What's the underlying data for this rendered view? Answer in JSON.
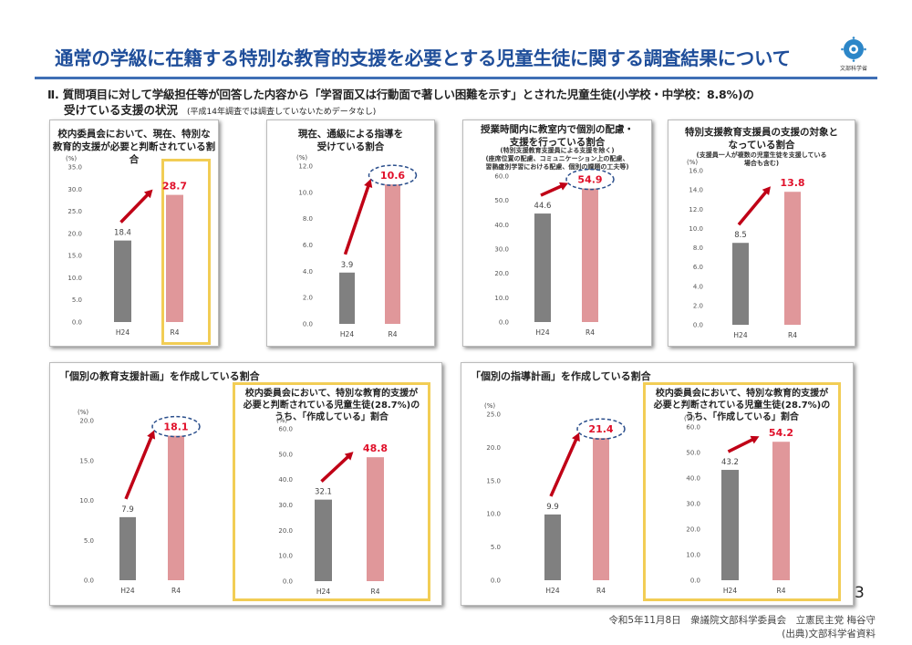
{
  "header": {
    "title": "通常の学級に在籍する特別な教育的支援を必要とする児童生徒に関する調査結果について",
    "logo_text": "文部科学省",
    "question_line1": "Ⅱ. 質問項目に対して学級担任等が回答した内容から「学習面又は行動面で著しい困難を示す」とされた児童生徒(小学校・中学校：8.8%)の",
    "question_line2": "受けている支援の状況",
    "question_note": "(平成14年調査では調査していないためデータなし)"
  },
  "colors": {
    "h24": "#808080",
    "r4": "#e0979a",
    "label_r4": "#e0102a",
    "arrow": "#c00016",
    "highlight": "#f2cd55",
    "ellipse": "#2b4f8c"
  },
  "panels": {
    "p1": {
      "title": "校内委員会において、現在、特別な\n教育的支援が必要と判断されている割合"
    },
    "p2": {
      "title": "現在、通級による指導を\n受けている割合"
    },
    "p3": {
      "title": "授業時間内に教室内で個別の配慮・\n支援を行っている割合",
      "subtitle": "(特別支援教育支援員による支援を除く)\n(座席位置の配慮、コミュニケーション上の配慮、\n習熟度別学習における配慮、個別の課題の工夫等)"
    },
    "p4": {
      "title": "特別支援教育支援員の支援の対象と\nなっている割合",
      "subtitle": "(支援員一人が複数の児童生徒を支援している\n場合も含む)"
    },
    "p5": {
      "title": "「個別の教育支援計画」を作成している割合",
      "inner_title": "校内委員会において、特別な教育的支援が\n必要と判断されている児童生徒(28.7%)の\nうち、「作成している」割合"
    },
    "p6": {
      "title": "「個別の指導計画」を作成している割合",
      "inner_title": "校内委員会において、特別な教育的支援が\n必要と判断されている児童生徒(28.7%)の\nうち、「作成している」割合"
    }
  },
  "chart_data": [
    {
      "id": "c1",
      "type": "bar",
      "categories": [
        "H24",
        "R4"
      ],
      "values": [
        18.4,
        28.7
      ],
      "ylabel": "(%)",
      "ylim": [
        0,
        35
      ],
      "ticks": [
        "0.0",
        "5.0",
        "10.0",
        "15.0",
        "20.0",
        "25.0",
        "30.0",
        "35.0"
      ],
      "grid": false
    },
    {
      "id": "c2",
      "type": "bar",
      "categories": [
        "H24",
        "R4"
      ],
      "values": [
        3.9,
        10.6
      ],
      "ylabel": "(%)",
      "ylim": [
        0,
        12
      ],
      "ticks": [
        "0.0",
        "2.0",
        "4.0",
        "6.0",
        "8.0",
        "10.0",
        "12.0"
      ],
      "grid": false
    },
    {
      "id": "c3",
      "type": "bar",
      "categories": [
        "H24",
        "R4"
      ],
      "values": [
        44.6,
        54.9
      ],
      "ylabel": "(%)",
      "ylim": [
        0,
        60
      ],
      "ticks": [
        "0.0",
        "10.0",
        "20.0",
        "30.0",
        "40.0",
        "50.0",
        "60.0"
      ],
      "grid": false
    },
    {
      "id": "c4",
      "type": "bar",
      "categories": [
        "H24",
        "R4"
      ],
      "values": [
        8.5,
        13.8
      ],
      "ylabel": "(%)",
      "ylim": [
        0,
        16
      ],
      "ticks": [
        "0.0",
        "2.0",
        "4.0",
        "6.0",
        "8.0",
        "10.0",
        "12.0",
        "14.0",
        "16.0"
      ],
      "grid": false
    },
    {
      "id": "c5",
      "type": "bar",
      "categories": [
        "H24",
        "R4"
      ],
      "values": [
        7.9,
        18.1
      ],
      "ylabel": "(%)",
      "ylim": [
        0,
        20
      ],
      "ticks": [
        "0.0",
        "5.0",
        "10.0",
        "15.0",
        "20.0"
      ],
      "grid": false
    },
    {
      "id": "c6",
      "type": "bar",
      "categories": [
        "H24",
        "R4"
      ],
      "values": [
        32.1,
        48.8
      ],
      "ylabel": "(%)",
      "ylim": [
        0,
        60
      ],
      "ticks": [
        "0.0",
        "10.0",
        "20.0",
        "30.0",
        "40.0",
        "50.0",
        "60.0"
      ],
      "grid": false
    },
    {
      "id": "c7",
      "type": "bar",
      "categories": [
        "H24",
        "R4"
      ],
      "values": [
        9.9,
        21.4
      ],
      "ylabel": "(%)",
      "ylim": [
        0,
        25
      ],
      "ticks": [
        "0.0",
        "5.0",
        "10.0",
        "15.0",
        "20.0",
        "25.0"
      ],
      "grid": false
    },
    {
      "id": "c8",
      "type": "bar",
      "categories": [
        "H24",
        "R4"
      ],
      "values": [
        43.2,
        54.2
      ],
      "ylabel": "(%)",
      "ylim": [
        0,
        60
      ],
      "ticks": [
        "0.0",
        "10.0",
        "20.0",
        "30.0",
        "40.0",
        "50.0",
        "60.0"
      ],
      "grid": false
    }
  ],
  "footer": {
    "page_number": "3",
    "line1": "令和5年11月8日　衆議院文部科学委員会　立憲民主党 梅谷守",
    "line2": "(出典)文部科学省資料"
  }
}
